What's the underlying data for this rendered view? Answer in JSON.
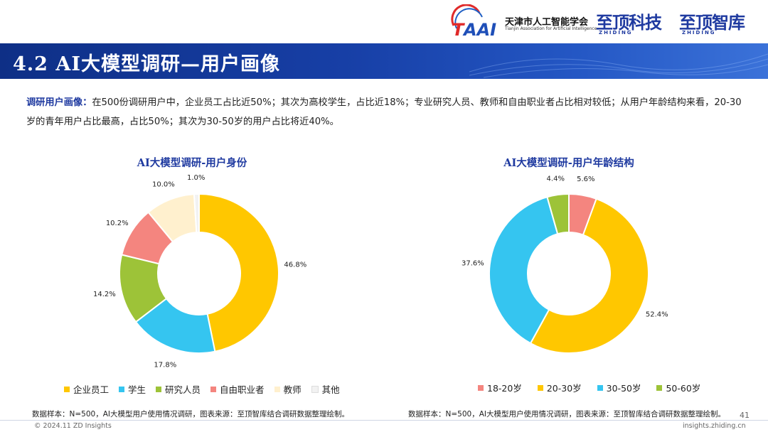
{
  "header": {
    "logo_association_cn": "天津市人工智能学会",
    "logo_association_en": "Tianjin Association for Artificial Intelligence",
    "logo_zhiding_tech": "至顶科技",
    "logo_zhiding_think": "至顶智库",
    "logo_zhiding_sub": "ZHIDING",
    "title": "4.2 AI大模型调研—用户画像"
  },
  "summary": {
    "lead": "调研用户画像：",
    "text": "在500份调研用户中，企业员工占比近50%；其次为高校学生，占比近18%；专业研究人员、教师和自由职业者占比相对较低；从用户年龄结构来看，20-30岁的青年用户占比最高，占比50%；其次为30-50岁的用户占比将近40%。"
  },
  "chart_data": [
    {
      "type": "pie",
      "donut": true,
      "title": "AI大模型调研-用户身份",
      "categories": [
        "企业员工",
        "学生",
        "研究人员",
        "自由职业者",
        "教师",
        "其他"
      ],
      "values": [
        46.8,
        17.8,
        14.2,
        10.2,
        10.0,
        1.0
      ],
      "labels": [
        "46.8%",
        "17.8%",
        "14.2%",
        "10.2%",
        "10.0%",
        "1.0%"
      ],
      "colors": [
        "#FFC700",
        "#35C5F0",
        "#9DC338",
        "#F4857F",
        "#FFF0CE",
        "#F2F2F2"
      ],
      "legend_position": "bottom",
      "source": "数据样本：N=500，AI大模型用户使用情况调研，图表来源：至顶智库结合调研数据整理绘制。"
    },
    {
      "type": "pie",
      "donut": true,
      "title": "AI大模型调研-用户年龄结构",
      "categories": [
        "18-20岁",
        "20-30岁",
        "30-50岁",
        "50-60岁"
      ],
      "values": [
        5.6,
        52.4,
        37.6,
        4.4
      ],
      "labels": [
        "5.6%",
        "52.4%",
        "37.6%",
        "4.4%"
      ],
      "colors": [
        "#F4857F",
        "#FFC700",
        "#35C5F0",
        "#9DC338"
      ],
      "legend_position": "bottom",
      "source": "数据样本：N=500，AI大模型用户使用情况调研，图表来源：至顶智库结合调研数据整理绘制。"
    }
  ],
  "footer": {
    "copyright": "© 2024.11 ZD Insights",
    "page_number": "41",
    "website": "insights.zhiding.cn"
  }
}
